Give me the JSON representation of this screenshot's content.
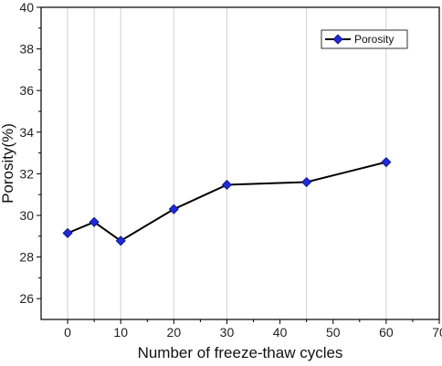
{
  "chart_data": {
    "type": "line",
    "title": "",
    "xlabel": "Number of freeze-thaw cycles",
    "ylabel": "Porosity(%)",
    "xlim": [
      -5,
      70
    ],
    "ylim": [
      25,
      40
    ],
    "xticks": [
      0,
      10,
      20,
      30,
      40,
      50,
      60,
      70
    ],
    "yticks": [
      26,
      28,
      30,
      32,
      34,
      36,
      38,
      40
    ],
    "vertical_gridlines_at": [
      0,
      5,
      10,
      20,
      30,
      45,
      60
    ],
    "grid": true,
    "legend_position": "top-right",
    "series": [
      {
        "name": "Porosity",
        "x": [
          0,
          5,
          10,
          20,
          30,
          45,
          60
        ],
        "y": [
          29.15,
          29.68,
          28.78,
          30.3,
          31.47,
          31.6,
          32.56
        ],
        "line_color": "#000000",
        "marker_color": "#1f2bd6",
        "marker": "diamond"
      }
    ]
  }
}
